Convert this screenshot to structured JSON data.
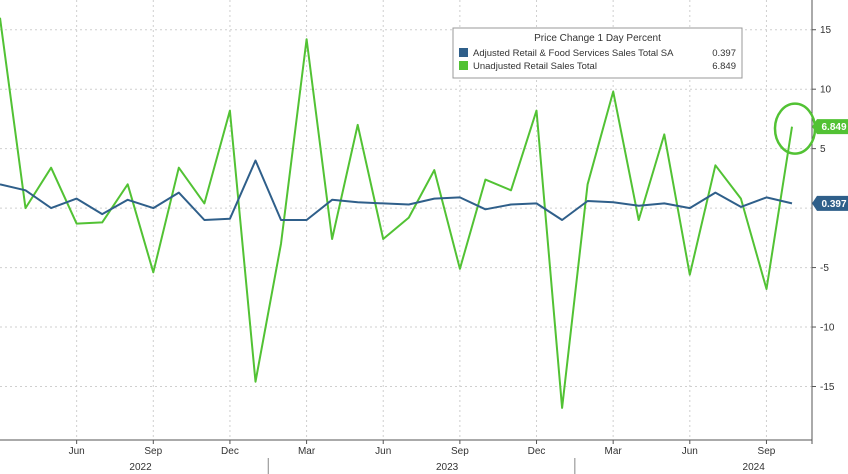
{
  "chart_data": {
    "type": "line",
    "legend": {
      "title": "Price Change 1 Day Percent",
      "placement": "top-right",
      "entries": [
        {
          "label": "Adjusted Retail & Food Services Sales Total SA",
          "value": "0.397"
        },
        {
          "label": "Unadjusted Retail Sales Total",
          "value": "6.849"
        }
      ]
    },
    "x_tick_labels": [
      "Jun",
      "Sep",
      "Dec",
      "Mar",
      "Jun",
      "Sep",
      "Dec",
      "Mar",
      "Jun",
      "Sep"
    ],
    "year_labels": [
      "2022",
      "2023",
      "2024"
    ],
    "y_tick_labels": [
      "15",
      "10",
      "5",
      "-5",
      "-10",
      "-15"
    ],
    "ylim": [
      -19.5,
      17.5
    ],
    "grid": true,
    "series": [
      {
        "name": "Adjusted Retail & Food Services Sales Total SA",
        "color": "#2f5f8a",
        "last_label": "0.397",
        "values": [
          2.0,
          1.5,
          0.0,
          0.8,
          -0.5,
          0.7,
          0.0,
          1.3,
          -1.0,
          -0.9,
          4.0,
          -1.0,
          -1.0,
          0.7,
          0.5,
          0.4,
          0.3,
          0.8,
          0.9,
          -0.1,
          0.3,
          0.4,
          -1.0,
          0.6,
          0.5,
          0.2,
          0.4,
          0.0,
          1.3,
          0.1,
          0.9,
          0.397
        ]
      },
      {
        "name": "Unadjusted Retail Sales Total",
        "color": "#52c234",
        "last_label": "6.849",
        "values": [
          16.0,
          0.0,
          3.4,
          -1.3,
          -1.2,
          2.0,
          -5.4,
          3.4,
          0.4,
          8.2,
          -14.6,
          -3.0,
          14.2,
          -2.6,
          7.0,
          -2.6,
          -0.8,
          3.2,
          -5.1,
          2.4,
          1.5,
          8.2,
          -16.8,
          2.0,
          9.8,
          -1.0,
          6.2,
          -5.6,
          3.6,
          0.8,
          -6.8,
          6.849
        ]
      }
    ]
  }
}
